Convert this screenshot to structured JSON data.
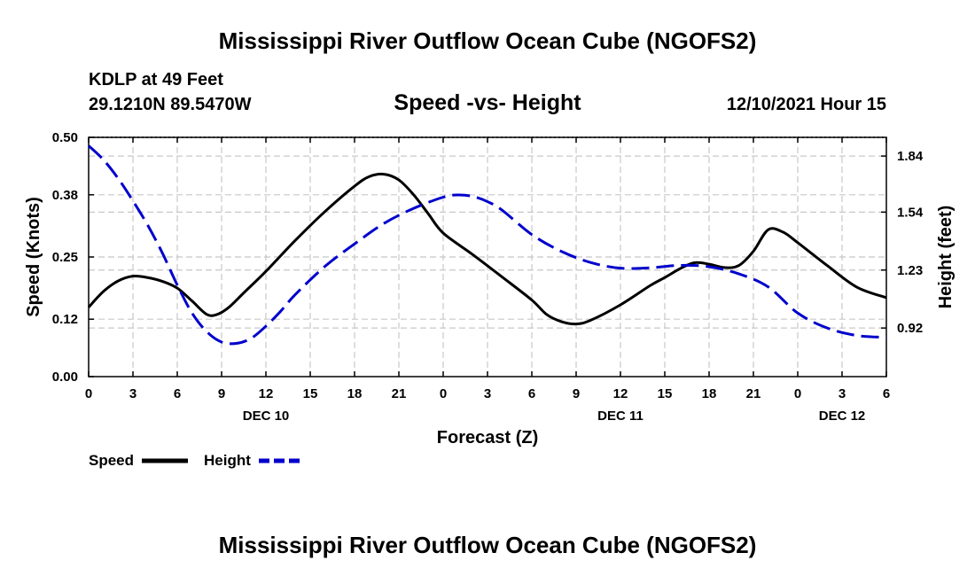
{
  "chart_data": {
    "type": "line",
    "title": "Mississippi River Outflow Ocean Cube (NGOFS2)",
    "footer_title": "Mississippi River Outflow Ocean Cube (NGOFS2)",
    "subtitle": "Speed -vs- Height",
    "station": "KDLP at 49 Feet",
    "coordinates": "29.1210N  89.5470W",
    "datetime": "12/10/2021 Hour 15",
    "xlabel": "Forecast (Z)",
    "ylabel_left": "Speed (Knots)",
    "ylabel_right": "Height (feet)",
    "x_ticks": [
      0,
      3,
      6,
      9,
      12,
      15,
      18,
      21,
      24,
      27,
      30,
      33,
      36,
      39,
      42,
      45,
      48,
      51,
      54
    ],
    "x_tick_labels": [
      "0",
      "3",
      "6",
      "9",
      "12",
      "15",
      "18",
      "21",
      "0",
      "3",
      "6",
      "9",
      "12",
      "15",
      "18",
      "21",
      "0",
      "3",
      "6"
    ],
    "day_labels": [
      {
        "hour": 12,
        "label": "DEC 10"
      },
      {
        "hour": 36,
        "label": "DEC 11"
      },
      {
        "hour": 51,
        "label": "DEC 12"
      }
    ],
    "xlim": [
      0,
      54
    ],
    "ylim_left": [
      0,
      0.5
    ],
    "y_left_ticks": [
      0.0,
      0.12,
      0.25,
      0.38,
      0.5
    ],
    "y_left_tick_labels": [
      "0.00",
      "0.12",
      "0.25",
      "0.38",
      "0.50"
    ],
    "ylim_right": [
      0.66,
      1.94
    ],
    "y_right_ticks": [
      0.92,
      1.23,
      1.54,
      1.84
    ],
    "y_right_tick_labels": [
      "0.92",
      "1.23",
      "1.54",
      "1.84"
    ],
    "series": [
      {
        "name": "Speed",
        "axis": "left",
        "color": "#000000",
        "dash": "solid",
        "x": [
          0,
          1,
          2,
          3,
          4,
          5,
          6,
          7,
          8,
          8.7,
          9.5,
          10.5,
          12,
          14,
          16,
          18,
          19,
          20,
          21,
          22,
          23,
          24,
          26,
          28,
          30,
          31,
          32,
          33,
          34,
          36,
          38,
          39,
          40,
          41,
          42,
          43,
          44,
          45,
          46,
          47,
          48,
          50,
          52,
          54
        ],
        "values": [
          0.145,
          0.178,
          0.2,
          0.21,
          0.207,
          0.199,
          0.185,
          0.158,
          0.13,
          0.13,
          0.145,
          0.175,
          0.22,
          0.285,
          0.345,
          0.398,
          0.418,
          0.423,
          0.411,
          0.38,
          0.34,
          0.3,
          0.255,
          0.208,
          0.16,
          0.13,
          0.115,
          0.11,
          0.118,
          0.15,
          0.19,
          0.207,
          0.225,
          0.238,
          0.235,
          0.228,
          0.232,
          0.262,
          0.307,
          0.302,
          0.28,
          0.232,
          0.187,
          0.165
        ]
      },
      {
        "name": "Height",
        "axis": "right",
        "color": "#0000cc",
        "dash": "dashed",
        "x": [
          0,
          1,
          2,
          3,
          4,
          5,
          6,
          7,
          8,
          9,
          10,
          11,
          12,
          13,
          14,
          16,
          18,
          20,
          22,
          24,
          25,
          26,
          27,
          28,
          30,
          32,
          34,
          36,
          38,
          40,
          42,
          44,
          46,
          48,
          50,
          52,
          54
        ],
        "values": [
          1.895,
          1.82,
          1.72,
          1.6,
          1.47,
          1.32,
          1.15,
          1.0,
          0.9,
          0.845,
          0.838,
          0.865,
          0.93,
          1.01,
          1.1,
          1.25,
          1.37,
          1.48,
          1.56,
          1.62,
          1.632,
          1.624,
          1.596,
          1.55,
          1.42,
          1.33,
          1.27,
          1.24,
          1.242,
          1.255,
          1.248,
          1.21,
          1.14,
          1.0,
          0.92,
          0.88,
          0.87
        ]
      }
    ],
    "legend_position": "bottom-left",
    "grid": true
  }
}
